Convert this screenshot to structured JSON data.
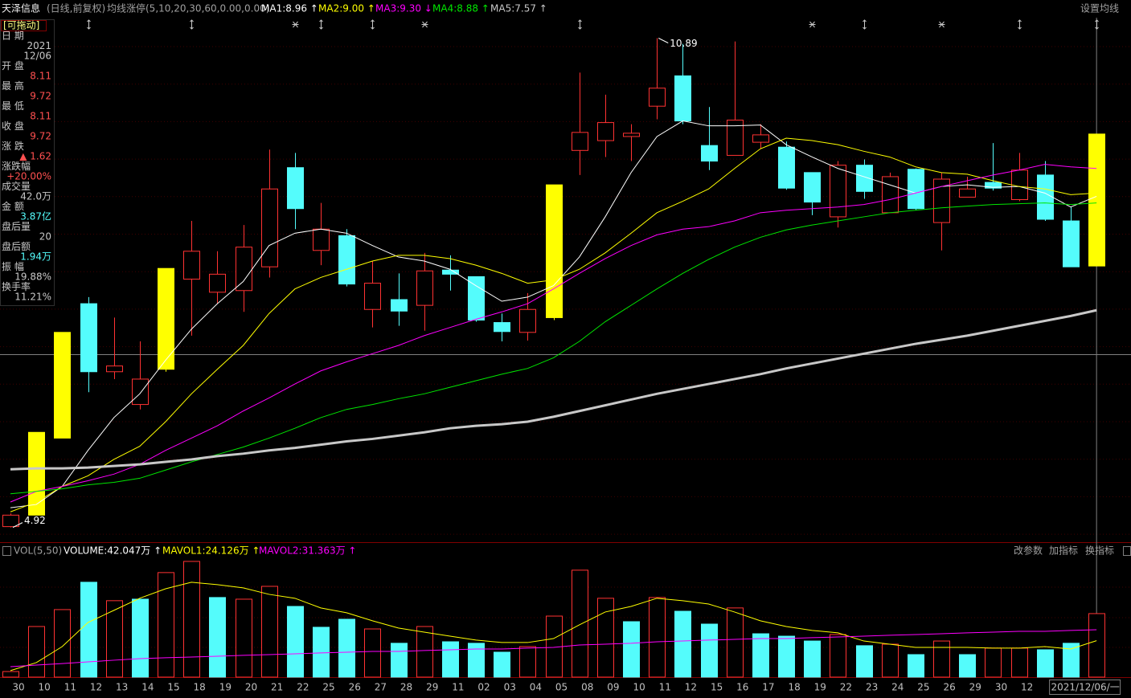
{
  "header": {
    "stock": "天泽信息",
    "period": "(日线,前复权)",
    "indicator": "均线涨停(5,10,20,30,60,0.00,0.00)",
    "settings": "设置均线"
  },
  "info_panel": {
    "title": "[可拖动]",
    "rows": [
      {
        "label": "日 期",
        "value": [
          2021,
          "12/06"
        ],
        "color": "#c8c8c8"
      },
      {
        "label": "开 盘",
        "value": [
          8.11
        ],
        "color": "#ff5050"
      },
      {
        "label": "最 高",
        "value": [
          9.72
        ],
        "color": "#ff5050"
      },
      {
        "label": "最 低",
        "value": [
          8.11
        ],
        "color": "#ff5050"
      },
      {
        "label": "收 盘",
        "value": [
          9.72
        ],
        "color": "#ff5050"
      },
      {
        "label": "涨 跌",
        "value": [
          "▲ 1.62"
        ],
        "color": "#ff5050"
      },
      {
        "label": "涨跌幅",
        "value": [
          "+20.00%"
        ],
        "color": "#ff5050"
      },
      {
        "label": "成交量",
        "value": [
          "42.0万"
        ],
        "color": "#c8c8c8"
      },
      {
        "label": "金 额",
        "value": [
          "3.87亿"
        ],
        "color": "#54fcfc"
      },
      {
        "label": "盘后量",
        "value": [
          20
        ],
        "color": "#c8c8c8"
      },
      {
        "label": "盘后额",
        "value": [
          "1.94万"
        ],
        "color": "#54fcfc"
      },
      {
        "label": "振 幅",
        "value": [
          "19.88%"
        ],
        "color": "#c8c8c8"
      },
      {
        "label": "换手率",
        "value": [
          "11.21%"
        ],
        "color": "#c8c8c8"
      }
    ]
  },
  "chart_data": [
    {
      "type": "candlestick",
      "categories": [
        "30",
        "10",
        "11",
        "12",
        "13",
        "14",
        "15",
        "18",
        "19",
        "20",
        "21",
        "22",
        "25",
        "26",
        "27",
        "28",
        "29",
        "11",
        "02",
        "03",
        "04",
        "05",
        "08",
        "09",
        "10",
        "11",
        "12",
        "15",
        "16",
        "17",
        "18",
        "19",
        "22",
        "23",
        "24",
        "25",
        "26",
        "29",
        "30",
        "12",
        null,
        null,
        "2021/12/06/一"
      ],
      "open": [
        4.93,
        5.07,
        6.01,
        7.65,
        6.82,
        6.42,
        6.85,
        7.95,
        7.79,
        7.81,
        8.1,
        9.31,
        8.3,
        8.48,
        7.58,
        7.7,
        7.63,
        8.06,
        7.98,
        7.42,
        7.3,
        7.48,
        9.52,
        9.64,
        9.69,
        10.06,
        10.43,
        9.58,
        9.46,
        9.62,
        9.56,
        9.25,
        8.71,
        9.34,
        8.76,
        9.29,
        8.64,
        8.95,
        9.13,
        8.92,
        9.22,
        8.66,
        8.11
      ],
      "high": [
        5.09,
        6.08,
        7.3,
        7.73,
        7.48,
        7.19,
        8.08,
        8.66,
        8.29,
        8.61,
        9.53,
        9.49,
        8.88,
        8.56,
        8.17,
        8.02,
        8.27,
        8.24,
        7.98,
        7.53,
        7.78,
        9.1,
        10.47,
        10.2,
        9.84,
        10.89,
        10.82,
        10.05,
        10.85,
        9.84,
        9.63,
        9.25,
        9.39,
        9.41,
        9.25,
        9.3,
        9.25,
        9.2,
        9.61,
        9.49,
        9.39,
        8.83,
        9.72
      ],
      "low": [
        4.92,
        5.07,
        6.01,
        6.57,
        6.73,
        6.36,
        6.82,
        7.26,
        7.65,
        7.55,
        7.97,
        8.56,
        8.12,
        7.86,
        7.36,
        7.38,
        7.32,
        7.81,
        7.43,
        7.19,
        7.2,
        7.45,
        9.22,
        9.44,
        9.39,
        9.9,
        9.84,
        9.28,
        9.46,
        9.54,
        9.04,
        8.73,
        8.58,
        8.93,
        8.76,
        8.79,
        8.3,
        8.95,
        9.03,
        8.9,
        8.66,
        8.1,
        8.11
      ],
      "close": [
        5.07,
        6.08,
        7.3,
        6.82,
        6.89,
        6.73,
        8.08,
        8.29,
        8.01,
        8.34,
        9.05,
        8.81,
        8.56,
        7.89,
        7.9,
        7.56,
        8.05,
        8.01,
        7.45,
        7.31,
        7.58,
        9.1,
        9.74,
        9.86,
        9.73,
        10.28,
        9.88,
        9.39,
        9.89,
        9.71,
        9.06,
        8.89,
        9.34,
        9.02,
        9.2,
        8.81,
        9.17,
        9.05,
        9.06,
        9.28,
        8.68,
        8.1,
        9.72
      ],
      "colors": [
        "#ff3232",
        "#ffff00",
        "#ffff00",
        "#54fcfc",
        "#ff3232",
        "#ff3232",
        "#ffff00",
        "#ff3232",
        "#ff3232",
        "#ff3232",
        "#ff3232",
        "#54fcfc",
        "#ff3232",
        "#54fcfc",
        "#ff3232",
        "#54fcfc",
        "#ff3232",
        "#54fcfc",
        "#54fcfc",
        "#54fcfc",
        "#ff3232",
        "#ffff00",
        "#ff3232",
        "#ff3232",
        "#ff3232",
        "#ff3232",
        "#54fcfc",
        "#54fcfc",
        "#ff3232",
        "#ff3232",
        "#54fcfc",
        "#54fcfc",
        "#ff3232",
        "#54fcfc",
        "#ff3232",
        "#54fcfc",
        "#ff3232",
        "#ff3232",
        "#54fcfc",
        "#ff3232",
        "#54fcfc",
        "#54fcfc",
        "#ffff00"
      ],
      "hollow_color": "#ff3232",
      "ylim": [
        4.74,
        11.14
      ],
      "series": [
        {
          "name": "MA1:8.96 ↑",
          "color": "#ffffff",
          "width": 1,
          "values": [
            5.16,
            5.2,
            5.42,
            5.86,
            6.26,
            6.55,
            6.96,
            7.34,
            7.65,
            7.92,
            8.36,
            8.51,
            8.56,
            8.51,
            8.36,
            8.22,
            8.17,
            8.07,
            7.87,
            7.68,
            7.73,
            7.87,
            8.22,
            8.71,
            9.25,
            9.69,
            9.88,
            9.82,
            9.82,
            9.83,
            9.59,
            9.44,
            9.3,
            9.2,
            9.1,
            9.0,
            9.08,
            9.1,
            9.07,
            9.08,
            9.0,
            8.83,
            8.96
          ]
        },
        {
          "name": "MA2:9.00 ↑",
          "color": "#ffff00",
          "width": 1,
          "values": [
            5.11,
            5.23,
            5.42,
            5.55,
            5.75,
            5.91,
            6.21,
            6.55,
            6.85,
            7.14,
            7.53,
            7.83,
            7.97,
            8.07,
            8.17,
            8.24,
            8.24,
            8.2,
            8.12,
            8.02,
            7.9,
            7.94,
            8.07,
            8.27,
            8.51,
            8.76,
            8.9,
            9.05,
            9.3,
            9.54,
            9.67,
            9.64,
            9.59,
            9.51,
            9.44,
            9.32,
            9.25,
            9.23,
            9.15,
            9.08,
            9.05,
            8.98,
            9.0
          ]
        },
        {
          "name": "MA3:9.30 ↓",
          "color": "#ff00ff",
          "width": 1,
          "values": [
            5.23,
            5.36,
            5.42,
            5.49,
            5.57,
            5.69,
            5.86,
            6.01,
            6.16,
            6.34,
            6.5,
            6.67,
            6.83,
            6.94,
            7.04,
            7.14,
            7.26,
            7.36,
            7.46,
            7.55,
            7.65,
            7.83,
            8.02,
            8.2,
            8.36,
            8.49,
            8.56,
            8.59,
            8.66,
            8.76,
            8.79,
            8.81,
            8.83,
            8.86,
            8.92,
            9.0,
            9.08,
            9.15,
            9.22,
            9.28,
            9.35,
            9.32,
            9.3
          ]
        },
        {
          "name": "MA4:8.88 ↑",
          "color": "#00e600",
          "width": 1,
          "values": [
            5.33,
            5.36,
            5.39,
            5.44,
            5.47,
            5.52,
            5.62,
            5.72,
            5.81,
            5.9,
            6.01,
            6.13,
            6.26,
            6.36,
            6.42,
            6.49,
            6.55,
            6.63,
            6.71,
            6.79,
            6.86,
            6.99,
            7.19,
            7.43,
            7.63,
            7.83,
            8.02,
            8.19,
            8.34,
            8.46,
            8.55,
            8.61,
            8.66,
            8.71,
            8.76,
            8.79,
            8.82,
            8.84,
            8.86,
            8.87,
            8.88,
            8.86,
            8.88
          ]
        },
        {
          "name": "MA5:7.57 ↑",
          "color": "#c8c8c8",
          "width": 3,
          "values": [
            5.63,
            5.64,
            5.64,
            5.65,
            5.67,
            5.69,
            5.72,
            5.75,
            5.79,
            5.82,
            5.86,
            5.89,
            5.93,
            5.97,
            6.0,
            6.04,
            6.08,
            6.13,
            6.16,
            6.18,
            6.21,
            6.27,
            6.34,
            6.41,
            6.48,
            6.55,
            6.61,
            6.67,
            6.73,
            6.79,
            6.86,
            6.92,
            6.98,
            7.04,
            7.1,
            7.16,
            7.21,
            7.26,
            7.32,
            7.38,
            7.44,
            7.5,
            7.57
          ]
        }
      ]
    },
    {
      "type": "bar",
      "title": "VOL(5,50)",
      "ylim": [
        0,
        78.7
      ],
      "hollow_color": "#ff3232",
      "buttons": [
        "改参数",
        "加指标",
        "换指标"
      ],
      "series": [
        {
          "name": "VOLUME:42.047万 ↑",
          "color": "#ffffff",
          "values": [
            3.7,
            33.5,
            44.7,
            62.8,
            50.6,
            51.6,
            69.2,
            76.6,
            52.7,
            51.6,
            60.1,
            46.8,
            33.0,
            38.3,
            31.9,
            22.4,
            33.5,
            23.4,
            22.4,
            16.5,
            20.2,
            40.4,
            70.8,
            52.2,
            36.7,
            52.7,
            43.6,
            35.1,
            45.8,
            28.7,
            27.1,
            23.9,
            28.2,
            20.8,
            21.8,
            14.9,
            23.9,
            14.9,
            19.2,
            19.2,
            18.1,
            22.4,
            42.047
          ],
          "colors": [
            "#ff3232",
            "#ff3232",
            "#ff3232",
            "#54fcfc",
            "#ff3232",
            "#54fcfc",
            "#ff3232",
            "#ff3232",
            "#54fcfc",
            "#ff3232",
            "#ff3232",
            "#54fcfc",
            "#54fcfc",
            "#54fcfc",
            "#ff3232",
            "#54fcfc",
            "#ff3232",
            "#54fcfc",
            "#54fcfc",
            "#54fcfc",
            "#ff3232",
            "#ff3232",
            "#ff3232",
            "#ff3232",
            "#54fcfc",
            "#ff3232",
            "#54fcfc",
            "#54fcfc",
            "#ff3232",
            "#54fcfc",
            "#54fcfc",
            "#54fcfc",
            "#ff3232",
            "#54fcfc",
            "#ff3232",
            "#54fcfc",
            "#ff3232",
            "#54fcfc",
            "#ff3232",
            "#ff3232",
            "#54fcfc",
            "#54fcfc",
            "#ff3232"
          ]
        },
        {
          "name": "MAVOL1:24.126万 ↑",
          "color": "#ffff00",
          "values": [
            4.3,
            9.6,
            20.2,
            36.2,
            44.2,
            52.2,
            58.5,
            62.8,
            61.2,
            59.1,
            54.8,
            52.2,
            45.8,
            42.6,
            37.3,
            32.5,
            29.8,
            27.1,
            24.5,
            22.9,
            22.9,
            25.5,
            34.6,
            43.1,
            46.8,
            52.2,
            50.6,
            48.4,
            43.1,
            37.3,
            33.5,
            30.9,
            29.3,
            23.9,
            21.8,
            19.7,
            19.7,
            19.7,
            19.2,
            19.2,
            20.2,
            18.6,
            24.126
          ]
        },
        {
          "name": "MAVOL2:31.363万 ↑",
          "color": "#ff00ff",
          "values": [
            6.9,
            8.0,
            9.0,
            10.1,
            11.2,
            12.2,
            12.8,
            13.3,
            13.8,
            14.4,
            14.9,
            15.4,
            16.0,
            16.5,
            17.0,
            17.0,
            17.6,
            18.1,
            18.6,
            18.6,
            19.2,
            19.7,
            21.3,
            21.8,
            22.4,
            23.4,
            23.9,
            24.5,
            25.0,
            25.5,
            25.5,
            26.1,
            26.6,
            27.1,
            27.7,
            28.2,
            28.7,
            29.3,
            29.8,
            30.3,
            30.3,
            30.9,
            31.363
          ]
        }
      ]
    }
  ]
}
